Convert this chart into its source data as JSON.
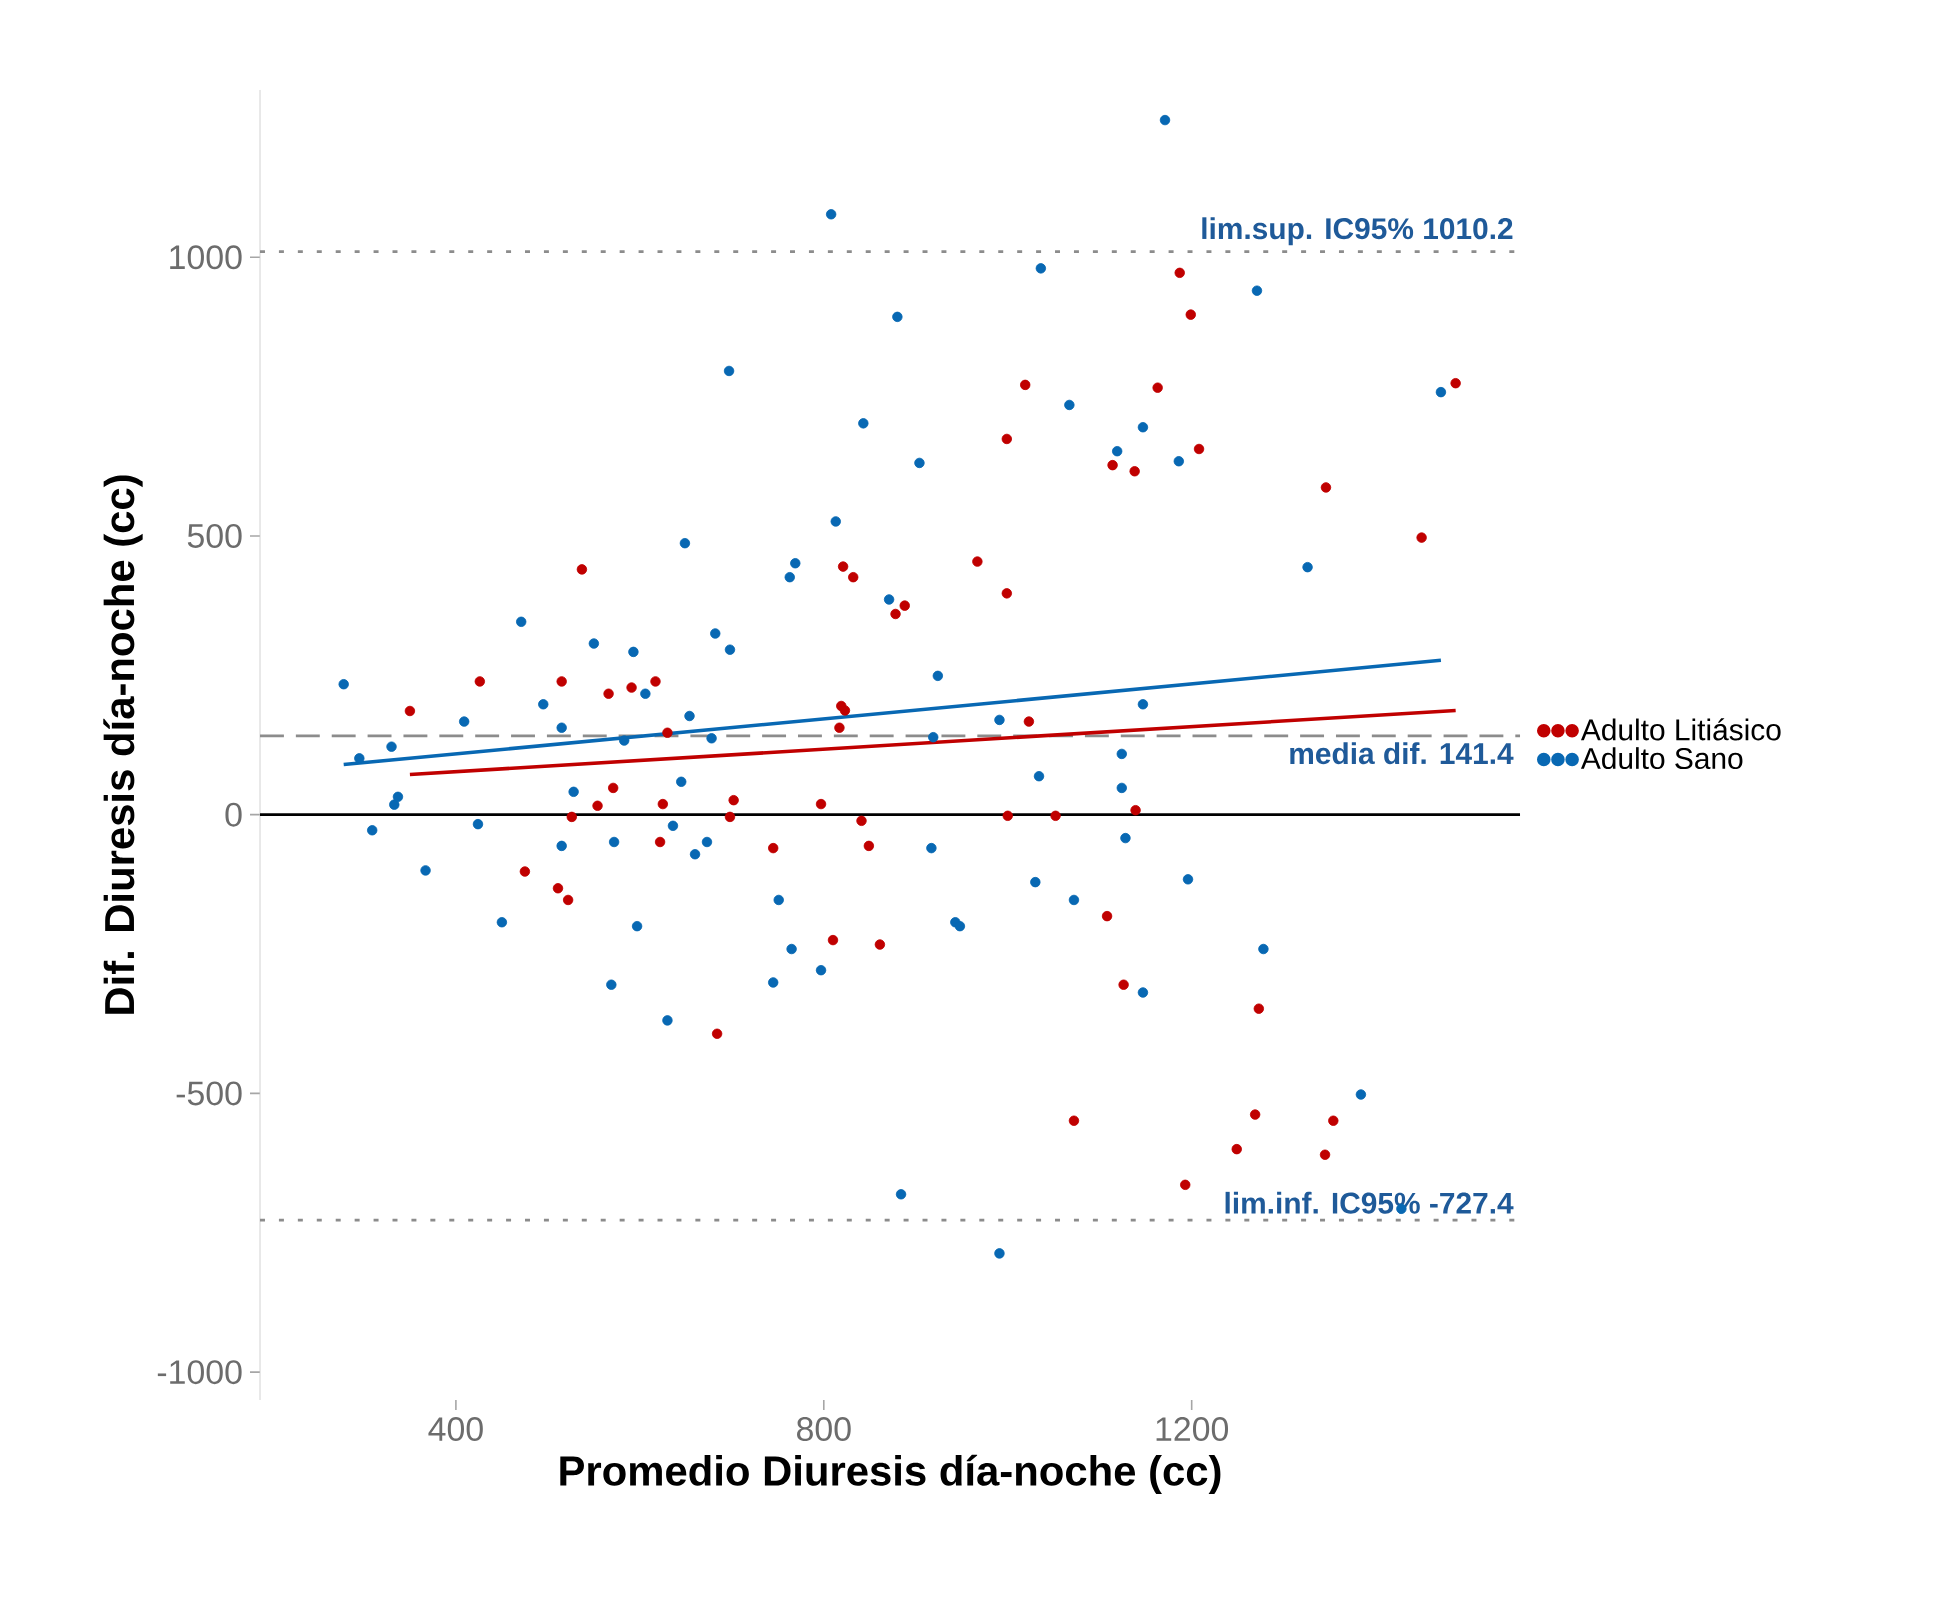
{
  "chart_data": {
    "type": "scatter",
    "xlabel": "Promedio Diuresis día-noche (cc)",
    "ylabel": "Dif. Diuresis día-noche (cc)",
    "xlim": [
      187,
      1557
    ],
    "ylim": [
      -1050,
      1300
    ],
    "xticks": [
      400,
      800,
      1200
    ],
    "yticks": [
      -1000,
      -500,
      0,
      500,
      1000
    ],
    "grid": false,
    "legend": "right",
    "marker": "circle",
    "series": [
      {
        "name": "Adulto Litiásico",
        "color": "#c00000",
        "x": [
          350,
          426,
          537,
          515,
          566,
          591,
          617,
          630,
          821,
          832,
          819,
          823,
          817,
          878,
          888,
          1187,
          1199,
          1019,
          1163,
          999,
          1114,
          1138,
          1208,
          1487,
          1346,
          1450,
          967,
          999,
          1023,
          571,
          554,
          526,
          625,
          702,
          698,
          797,
          841,
          849,
          622,
          745,
          475,
          511,
          522,
          810,
          861,
          684,
          1000,
          1052,
          1139,
          1108,
          1126,
          1273,
          1072,
          1269,
          1354,
          1249,
          1345,
          1193
        ],
        "values": [
          186,
          239,
          440,
          239,
          217,
          228,
          239,
          147,
          445,
          426,
          195,
          187,
          156,
          360,
          375,
          972,
          897,
          771,
          766,
          674,
          627,
          616,
          656,
          774,
          587,
          497,
          454,
          397,
          167,
          48,
          16,
          -4,
          19,
          26,
          -4,
          19,
          -11,
          -56,
          -49,
          -60,
          -102,
          -132,
          -153,
          -225,
          -233,
          -393,
          -2,
          -2,
          8,
          -182,
          -305,
          -348,
          -549,
          -538,
          -549,
          -600,
          -610,
          -664
        ]
      },
      {
        "name": "Adulto Sano",
        "color": "#0868b3",
        "x": [
          278,
          295,
          309,
          330,
          333,
          337,
          367,
          424,
          450,
          528,
          515,
          572,
          597,
          569,
          645,
          636,
          660,
          673,
          630,
          751,
          765,
          745,
          797,
          884,
          583,
          409,
          471,
          495,
          515,
          550,
          593,
          606,
          654,
          649,
          682,
          698,
          697,
          678,
          763,
          769,
          808,
          813,
          843,
          871,
          880,
          1171,
          1036,
          1271,
          904,
          1067,
          1147,
          1119,
          1186,
          1471,
          1326,
          924,
          991,
          1147,
          919,
          1124,
          1034,
          1124,
          1128,
          917,
          1030,
          1072,
          943,
          948,
          1196,
          1278,
          1147,
          1384,
          991,
          1428
        ],
        "values": [
          234,
          101,
          -28,
          122,
          18,
          32,
          -100,
          -17,
          -193,
          41,
          -56,
          -49,
          -200,
          -305,
          59,
          -20,
          -71,
          -49,
          -369,
          -153,
          -241,
          -301,
          -279,
          -681,
          133,
          167,
          346,
          198,
          156,
          307,
          292,
          217,
          177,
          487,
          325,
          296,
          796,
          137,
          426,
          451,
          1077,
          526,
          702,
          386,
          893,
          1246,
          980,
          940,
          631,
          735,
          695,
          652,
          634,
          758,
          444,
          249,
          170,
          198,
          139,
          109,
          69,
          48,
          -42,
          -60,
          -121,
          -153,
          -193,
          -200,
          -116,
          -241,
          -319,
          -502,
          -787,
          -707
        ]
      },
      {
        "type": "line",
        "marker": "none",
        "color": "#c00000",
        "x": [
          350,
          1487
        ],
        "values": [
          72,
          187
        ]
      },
      {
        "type": "line",
        "marker": "none",
        "color": "#0868b3",
        "x": [
          278,
          1471
        ],
        "values": [
          90,
          277
        ]
      }
    ],
    "ref_lines": [
      {
        "axis": "y",
        "value": 1010.2,
        "label": "lim.sup. IC95%   1010.2",
        "color": "#8c8c8c",
        "line_style": "dotted"
      },
      {
        "axis": "y",
        "value": 141.4,
        "label": "media dif.   141.4",
        "color": "#8c8c8c",
        "line_style": "dashed"
      },
      {
        "axis": "y",
        "value": -727.4,
        "label": "lim.inf. IC95%   -727.4",
        "color": "#8c8c8c",
        "line_style": "dotted"
      },
      {
        "axis": "y",
        "value": 0,
        "color": "#000000",
        "line_style": "solid"
      }
    ]
  }
}
